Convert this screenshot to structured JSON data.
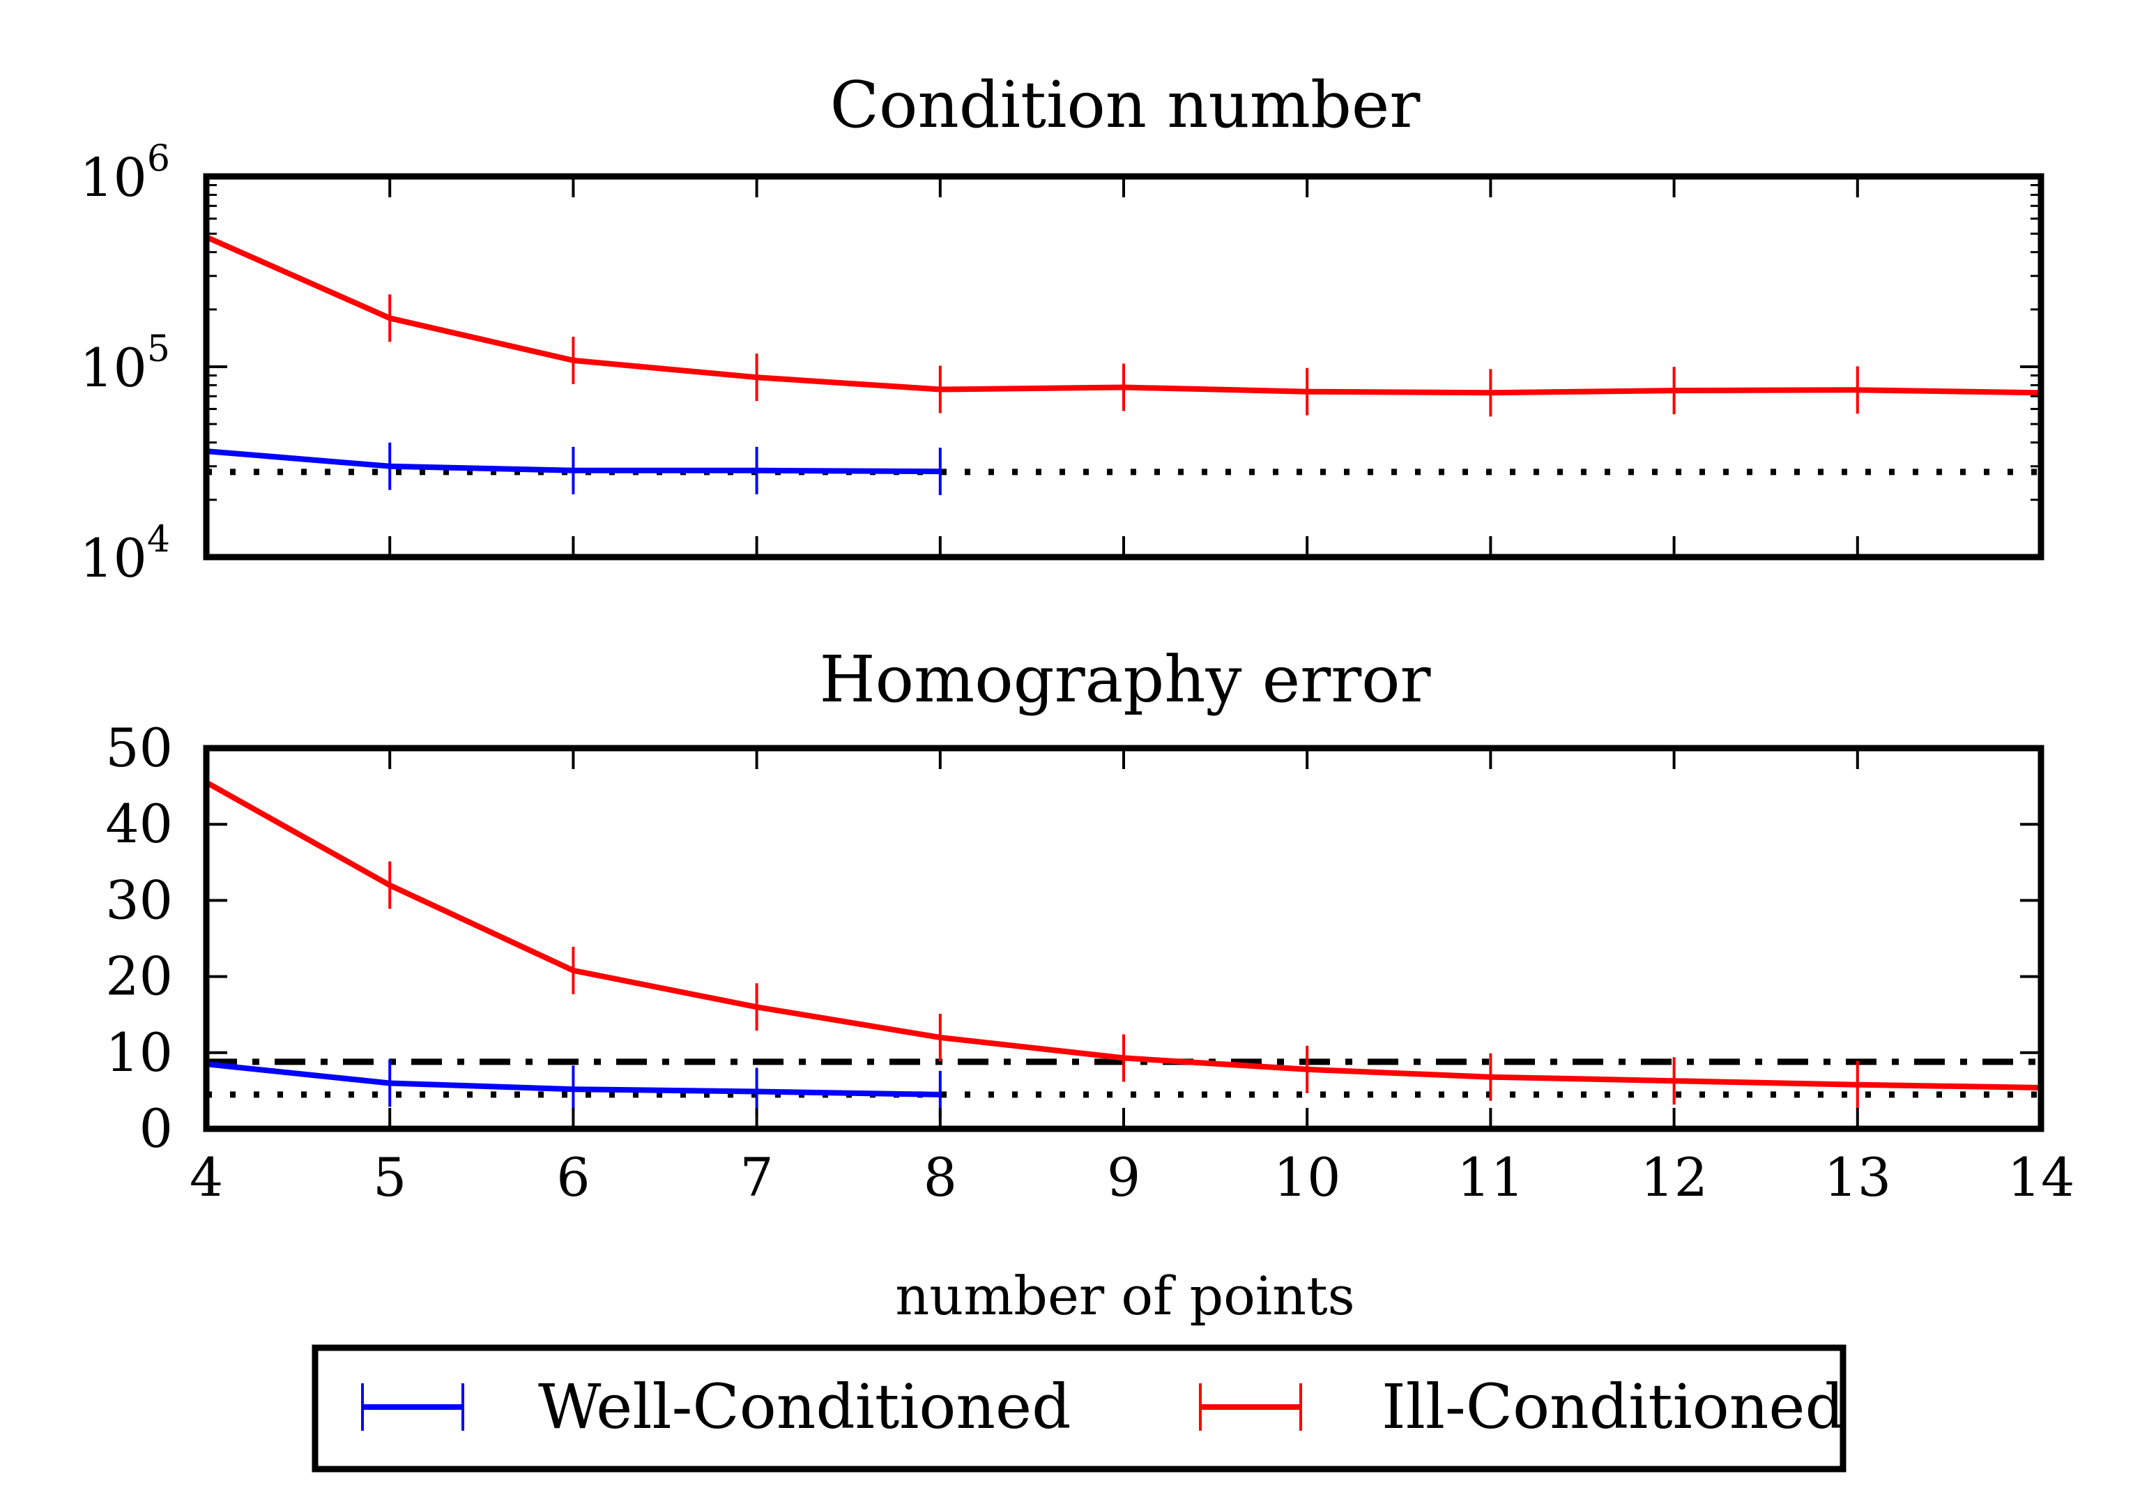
{
  "chart_data": [
    {
      "type": "line",
      "title": "Condition number",
      "xlabel": "",
      "ylabel": "",
      "yscale": "log",
      "xlim": [
        4,
        14
      ],
      "ylim": [
        10000,
        1000000
      ],
      "x_ticks": [
        "4",
        "5",
        "6",
        "7",
        "8",
        "9",
        "10",
        "11",
        "12",
        "13",
        "14"
      ],
      "y_ticks": [
        {
          "value": 1000000,
          "base": "10",
          "exp": "6"
        },
        {
          "value": 100000,
          "base": "10",
          "exp": "5"
        },
        {
          "value": 10000,
          "base": "10",
          "exp": "4"
        }
      ],
      "x_tick_labels_visible": false,
      "grid": false,
      "series": [
        {
          "name": "Well-Conditioned",
          "color": "#0000ff",
          "x": [
            4,
            5,
            6,
            7,
            8
          ],
          "y": [
            36000,
            30000,
            28500,
            28500,
            28200
          ],
          "errorbars": true
        },
        {
          "name": "Ill-Conditioned",
          "color": "#ff0000",
          "x": [
            4,
            5,
            6,
            7,
            8,
            9,
            10,
            11,
            12,
            13,
            14
          ],
          "y": [
            480000,
            180000,
            108000,
            88000,
            76000,
            78000,
            74000,
            73000,
            75000,
            75500,
            73000
          ],
          "errorbars": true
        }
      ],
      "reference_lines": [
        {
          "style": "dotted",
          "color": "#000000",
          "y": 28000
        }
      ]
    },
    {
      "type": "line",
      "title": "Homography error",
      "xlabel": "number of points",
      "ylabel": "",
      "yscale": "linear",
      "xlim": [
        4,
        14
      ],
      "ylim": [
        0,
        50
      ],
      "x_ticks": [
        "4",
        "5",
        "6",
        "7",
        "8",
        "9",
        "10",
        "11",
        "12",
        "13",
        "14"
      ],
      "y_ticks": [
        "0",
        "10",
        "20",
        "30",
        "40",
        "50"
      ],
      "grid": false,
      "series": [
        {
          "name": "Well-Conditioned",
          "color": "#0000ff",
          "x": [
            4,
            5,
            6,
            7,
            8
          ],
          "y": [
            8.5,
            6.0,
            5.2,
            4.9,
            4.5
          ],
          "errorbars": true
        },
        {
          "name": "Ill-Conditioned",
          "color": "#ff0000",
          "x": [
            4,
            5,
            6,
            7,
            8,
            9,
            10,
            11,
            12,
            13,
            14
          ],
          "y": [
            45.5,
            32.0,
            20.8,
            16.0,
            12.0,
            9.3,
            7.8,
            6.8,
            6.3,
            5.8,
            5.4
          ],
          "errorbars": true
        }
      ],
      "reference_lines": [
        {
          "style": "dashdot",
          "color": "#000000",
          "y": 8.8
        },
        {
          "style": "dotted",
          "color": "#000000",
          "y": 4.5
        }
      ]
    }
  ],
  "legend": {
    "placement": "bottom-center",
    "entries": [
      {
        "label": "Well-Conditioned",
        "color": "#0000ff"
      },
      {
        "label": "Ill-Conditioned",
        "color": "#ff0000"
      }
    ]
  }
}
